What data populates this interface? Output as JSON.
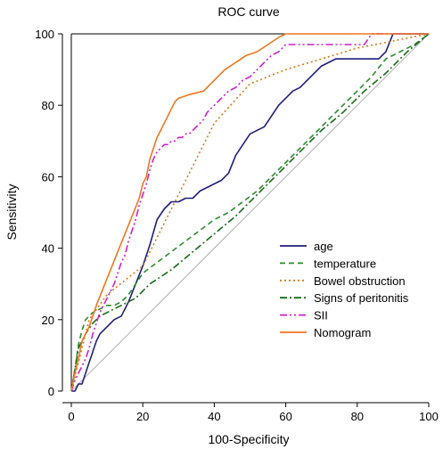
{
  "chart_data": {
    "type": "line",
    "title": "ROC curve",
    "xlabel": "100-Specificity",
    "ylabel": "Sensitivity",
    "xlim": [
      0,
      100
    ],
    "ylim": [
      0,
      100
    ],
    "xticks": [
      "0",
      "20",
      "40",
      "60",
      "80",
      "100"
    ],
    "yticks": [
      "0",
      "20",
      "40",
      "60",
      "80",
      "100"
    ],
    "grid": false,
    "legend_position": "bottom-right",
    "reference_line": {
      "x": [
        0,
        100
      ],
      "y": [
        0,
        100
      ],
      "color": "#a0a0a0"
    },
    "series": [
      {
        "name": "age",
        "color": "#1f1f7a",
        "dash": "solid",
        "x": [
          0,
          1,
          2,
          3,
          4,
          5,
          6,
          7,
          8,
          9,
          10,
          11,
          12,
          14,
          16,
          18,
          20,
          22,
          24,
          26,
          28,
          30,
          32,
          34,
          36,
          38,
          40,
          42,
          44,
          46,
          48,
          50,
          52,
          54,
          56,
          58,
          60,
          62,
          64,
          66,
          68,
          70,
          72,
          74,
          76,
          78,
          80,
          82,
          84,
          86,
          88,
          90,
          100
        ],
        "y": [
          0,
          0,
          2,
          2,
          5,
          8,
          11,
          14,
          16,
          17,
          18,
          19,
          20,
          21,
          25,
          30,
          35,
          41,
          48,
          51,
          53,
          53,
          54,
          54,
          56,
          57,
          58,
          59,
          61,
          66,
          69,
          72,
          73,
          74,
          77,
          80,
          82,
          84,
          85,
          87,
          89,
          91,
          92,
          93,
          93,
          93,
          93,
          93,
          93,
          93,
          95,
          100,
          100
        ]
      },
      {
        "name": "temperature",
        "color": "#2e8b2e",
        "dash": "6,4",
        "x": [
          0,
          1,
          2,
          3,
          4,
          6,
          8,
          10,
          12,
          14,
          16,
          18,
          20,
          24,
          28,
          32,
          36,
          40,
          44,
          48,
          52,
          56,
          60,
          64,
          66,
          68,
          70,
          72,
          74,
          76,
          78,
          80,
          84,
          88,
          92,
          96,
          100
        ],
        "y": [
          0,
          6,
          13,
          17,
          20,
          22,
          23,
          24,
          24,
          25,
          27,
          30,
          33,
          36,
          39,
          42,
          45,
          48,
          50,
          53,
          56,
          60,
          64,
          68,
          70,
          72,
          74,
          76,
          78,
          80,
          82,
          84,
          88,
          93,
          95,
          97,
          100
        ]
      },
      {
        "name": "Bowel obstruction",
        "color": "#d97a1a",
        "dash": "2,3",
        "x": [
          0,
          5,
          10,
          20,
          30,
          40,
          50,
          60,
          70,
          80,
          90,
          100
        ],
        "y": [
          0,
          20,
          27,
          35,
          55,
          75,
          86,
          90,
          93,
          96,
          98,
          100
        ]
      },
      {
        "name": "Signs of peritonitis",
        "color": "#1a6b1a",
        "dash": "8,3,2,3",
        "x": [
          0,
          2,
          4,
          6,
          8,
          10,
          14,
          18,
          22,
          28,
          34,
          40,
          46,
          52,
          58,
          64,
          70,
          76,
          82,
          88,
          94,
          100
        ],
        "y": [
          0,
          12,
          16,
          19,
          21,
          22,
          24,
          26,
          30,
          34,
          39,
          44,
          49,
          55,
          61,
          67,
          73,
          78,
          84,
          89,
          95,
          100
        ]
      },
      {
        "name": "SII",
        "color": "#cc22cc",
        "dash": "8,3,2,3,2,3",
        "x": [
          0,
          1,
          2,
          3,
          4,
          5,
          6,
          7,
          8,
          9,
          10,
          11,
          12,
          13,
          14,
          15,
          16,
          17,
          18,
          19,
          20,
          21,
          22,
          23,
          24,
          25,
          26,
          27,
          28,
          29,
          30,
          31,
          32,
          33,
          34,
          35,
          36,
          37,
          38,
          39,
          40,
          42,
          44,
          46,
          48,
          50,
          52,
          54,
          56,
          58,
          60,
          62,
          64,
          66,
          68,
          70,
          72,
          74,
          76,
          78,
          80,
          82,
          84,
          86,
          88,
          90,
          92,
          94,
          96,
          98,
          100
        ],
        "y": [
          0,
          3,
          5,
          7,
          9,
          12,
          16,
          19,
          22,
          24,
          26,
          28,
          30,
          33,
          36,
          38,
          42,
          45,
          48,
          52,
          55,
          58,
          62,
          65,
          67,
          68,
          69,
          69,
          70,
          70,
          71,
          71,
          72,
          72,
          73,
          74,
          75,
          76,
          78,
          79,
          80,
          82,
          84,
          85,
          87,
          88,
          90,
          92,
          94,
          95,
          97,
          97,
          97,
          97,
          97,
          97,
          97,
          97,
          97,
          97,
          97,
          97,
          100,
          100,
          100,
          100,
          100,
          100,
          100,
          100,
          100
        ]
      },
      {
        "name": "Nomogram",
        "color": "#ee7722",
        "dash": "solid",
        "x": [
          0,
          1,
          2,
          3,
          5,
          7,
          9,
          11,
          13,
          15,
          17,
          19,
          20,
          21,
          22,
          23,
          24,
          25,
          26,
          27,
          28,
          29,
          30,
          33,
          37,
          40,
          43,
          46,
          49,
          52,
          55,
          58,
          60,
          65,
          70,
          75,
          80,
          85,
          90,
          95,
          100
        ],
        "y": [
          0,
          5,
          9,
          14,
          18,
          24,
          29,
          34,
          39,
          44,
          49,
          54,
          58,
          60,
          65,
          68,
          71,
          73,
          75,
          77,
          79,
          81,
          82,
          83,
          84,
          87,
          90,
          92,
          94,
          95,
          97,
          99,
          100,
          100,
          100,
          100,
          100,
          100,
          100,
          100,
          100
        ]
      }
    ]
  }
}
